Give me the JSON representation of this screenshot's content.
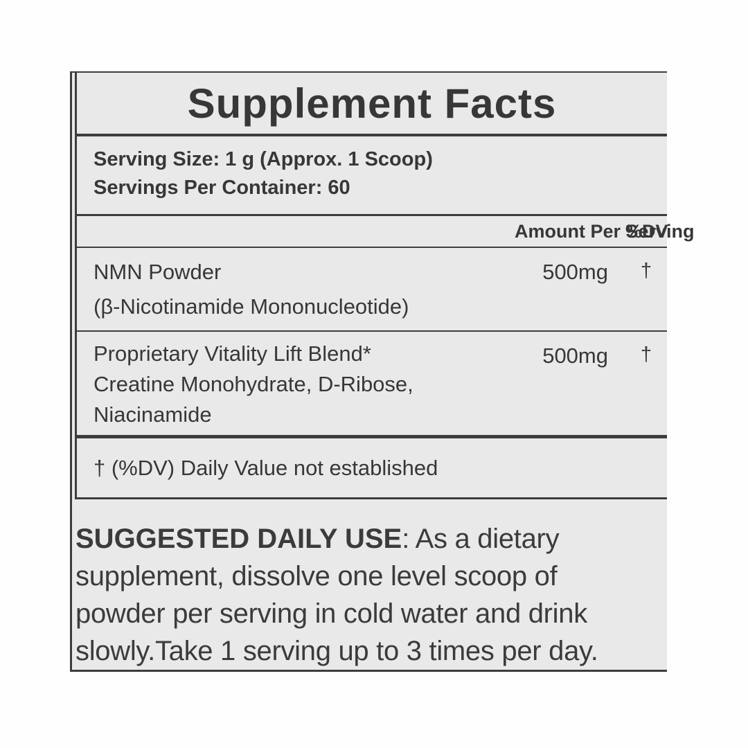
{
  "colors": {
    "page_bg": "#fefefe",
    "panel_bg": "#e9e9e9",
    "line": "#3d3d3d",
    "text": "#373737"
  },
  "label": {
    "title": "Supplement Facts",
    "serving_size": "Serving Size: 1 g (Approx. 1 Scoop)",
    "servings_per_container": "Servings Per Container: 60",
    "columns": {
      "amount_header": "Amount Per Serving",
      "dv_header": "%DV"
    },
    "rows": [
      {
        "name": "NMN Powder",
        "subs": [
          "(β-Nicotinamide Mononucleotide)"
        ],
        "amount": "500mg",
        "dv": "†"
      },
      {
        "name": "Proprietary Vitality Lift Blend*",
        "subs": [
          "Creatine Monohydrate, D-Ribose,",
          "Niacinamide"
        ],
        "amount": "500mg",
        "dv": "†"
      }
    ],
    "footnote": "† (%DV) Daily Value not established",
    "usage": {
      "heading": "SUGGESTED DAILY USE",
      "line1_rest": ": As a dietary",
      "line2": "supplement, dissolve one level scoop of",
      "line3": "powder per serving in cold water and drink",
      "line4": "slowly.Take 1 serving up to 3 times per day."
    }
  }
}
